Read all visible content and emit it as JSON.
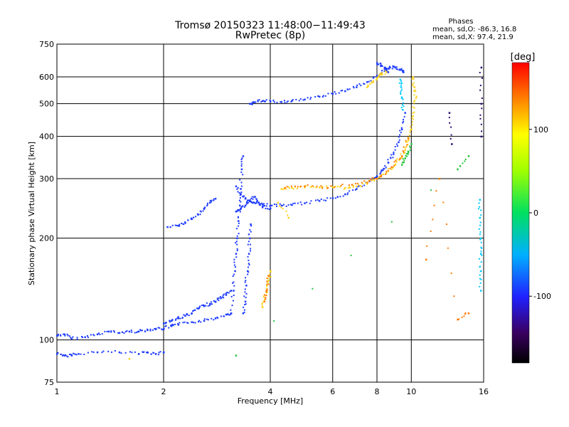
{
  "chart_data": {
    "type": "scatter",
    "title": "Tromsø 20150323 11:48:00−11:49:43",
    "subtitle": "RwPretec (8p)",
    "stats_header": "Phases",
    "stats_line_o": "mean, sd,O: -86.3, 16.8",
    "stats_line_x": "mean, sd,X:  97.4, 21.9",
    "xlabel": "Frequency [MHz]",
    "ylabel": "Stationary phase Virtual Height [km]",
    "x_scale": "log",
    "y_scale": "log",
    "xlim": [
      1,
      16
    ],
    "ylim": [
      75,
      750
    ],
    "x_ticks": [
      1,
      2,
      4,
      6,
      8,
      10,
      16
    ],
    "x_tick_labels": [
      "1",
      "2",
      "4",
      "6",
      "8",
      "10",
      "16"
    ],
    "y_ticks": [
      75,
      100,
      200,
      300,
      400,
      500,
      600,
      750
    ],
    "y_tick_labels": [
      "75",
      "100",
      "200",
      "300",
      "400",
      "500",
      "600",
      "750"
    ],
    "grid": true,
    "colorbar": {
      "label": "[deg]",
      "min": -180,
      "max": 180,
      "ticks": [
        -100,
        0,
        100
      ],
      "tick_labels": [
        "-100",
        "0",
        "100"
      ],
      "colormap": "rainbow"
    },
    "series": [
      {
        "color": "#1e3cff",
        "phase": -95,
        "segments": [
          {
            "x": [
              1.0,
              1.05,
              1.1,
              1.2,
              1.3,
              1.4,
              1.5,
              1.6,
              1.7,
              1.8,
              1.9,
              2.0,
              2.1,
              2.2,
              2.4,
              2.6,
              2.8,
              3.0,
              3.1
            ],
            "y": [
              103,
              104,
              101,
              102,
              104,
              106,
              105,
              106,
              106,
              107,
              108,
              108,
              110,
              111,
              113,
              114,
              116,
              119,
              120
            ]
          },
          {
            "x": [
              1.0,
              1.05,
              1.1,
              1.15,
              1.3,
              1.5,
              1.7,
              1.8,
              1.9,
              2.0
            ],
            "y": [
              91,
              90,
              90,
              91,
              92,
              92,
              91,
              92,
              91,
              92
            ]
          },
          {
            "x": [
              2.0,
              2.1,
              2.2,
              2.3,
              2.4,
              2.5,
              2.6,
              2.7,
              2.8,
              2.9,
              3.0,
              3.1
            ],
            "y": [
              112,
              114,
              116,
              118,
              120,
              124,
              126,
              128,
              130,
              133,
              136,
              140
            ]
          },
          {
            "x": [
              2.05,
              2.2,
              2.3,
              2.4,
              2.5,
              2.6,
              2.7,
              2.8
            ],
            "y": [
              216,
              218,
              222,
              228,
              235,
              245,
              255,
              262
            ]
          },
          {
            "x": [
              3.1,
              3.15,
              3.18,
              3.2,
              3.22,
              3.25,
              3.28,
              3.3,
              3.32,
              3.35
            ],
            "y": [
              120,
              140,
              160,
              180,
              200,
              225,
              250,
              280,
              320,
              350
            ]
          },
          {
            "x": [
              3.2,
              3.3,
              3.4,
              3.5,
              3.6,
              3.8,
              4.0,
              4.3,
              4.6,
              5.0,
              5.5,
              6.0,
              6.5,
              7.0,
              7.5,
              8.0,
              8.3,
              8.6,
              8.9,
              9.2,
              9.4,
              9.6
            ],
            "y": [
              285,
              270,
              262,
              258,
              255,
              252,
              250,
              250,
              251,
              254,
              258,
              263,
              270,
              280,
              292,
              305,
              318,
              335,
              355,
              385,
              420,
              470
            ]
          },
          {
            "x": [
              3.2,
              3.3,
              3.4,
              3.5,
              3.6,
              3.7,
              3.8,
              4.0
            ],
            "y": [
              240,
              245,
              250,
              258,
              265,
              255,
              248,
              245
            ]
          },
          {
            "x": [
              3.35,
              3.4,
              3.42,
              3.45,
              3.48,
              3.5,
              3.52
            ],
            "y": [
              120,
              130,
              145,
              160,
              180,
              200,
              220
            ]
          },
          {
            "x": [
              3.5,
              3.6,
              3.8,
              4.0,
              4.3,
              4.6,
              5.0,
              5.5,
              6.0,
              6.5,
              7.0,
              7.5,
              8.0,
              8.4,
              8.7,
              9.0,
              9.3,
              9.5
            ],
            "y": [
              500,
              505,
              510,
              508,
              506,
              510,
              515,
              525,
              535,
              545,
              560,
              580,
              605,
              625,
              640,
              640,
              630,
              620
            ]
          },
          {
            "x": [
              8.0,
              8.2,
              8.4,
              8.5,
              8.6
            ],
            "y": [
              660,
              650,
              640,
              630,
              620
            ]
          }
        ]
      },
      {
        "color": "#ffd21e",
        "phase": 100,
        "segments": [
          {
            "x": [
              4.3,
              4.6,
              5.0,
              5.5,
              6.0,
              6.5,
              7.0,
              7.5,
              8.0,
              8.5,
              9.0,
              9.3,
              9.6,
              9.8,
              10.0,
              10.1,
              10.2
            ],
            "y": [
              280,
              282,
              283,
              283,
              283,
              282,
              285,
              290,
              300,
              312,
              330,
              345,
              365,
              390,
              420,
              460,
              510
            ]
          },
          {
            "x": [
              3.8,
              3.85,
              3.9,
              3.95,
              4.0
            ],
            "y": [
              125,
              132,
              140,
              150,
              160
            ]
          },
          {
            "x": [
              7.5,
              7.8,
              8.0,
              8.2,
              8.5
            ],
            "y": [
              560,
              580,
              595,
              610,
              620
            ]
          },
          {
            "x": [
              10.1,
              10.2,
              10.3
            ],
            "y": [
              600,
              560,
              520
            ]
          },
          {
            "x": [
              1.6
            ],
            "y": [
              88
            ]
          },
          {
            "x": [
              4.2,
              4.5
            ],
            "y": [
              255,
              230
            ]
          }
        ]
      },
      {
        "color": "#ff7a00",
        "phase": 135,
        "segments": [
          {
            "x": [
              4.4,
              5.0,
              5.8,
              6.8,
              7.6,
              8.2,
              8.8,
              9.4,
              9.8
            ],
            "y": [
              282,
              285,
              282,
              288,
              296,
              305,
              325,
              350,
              395
            ]
          },
          {
            "x": [
              3.85,
              3.9,
              3.95
            ],
            "y": [
              130,
              140,
              155
            ]
          },
          {
            "x": [
              11.0,
              12.0,
              13.5,
              14.5
            ],
            "y": [
              173,
              300,
              115,
              120
            ]
          }
        ]
      },
      {
        "color": "#27c43a",
        "phase": 30,
        "segments": [
          {
            "x": [
              9.4,
              9.6,
              9.8,
              10.0
            ],
            "y": [
              330,
              345,
              360,
              380
            ]
          },
          {
            "x": [
              13.5,
              14.5,
              3.2
            ],
            "y": [
              320,
              350,
              90
            ]
          }
        ]
      },
      {
        "color": "#00c8ff",
        "phase": -40,
        "segments": [
          {
            "x": [
              15.6,
              15.6,
              15.7,
              15.7,
              15.7,
              15.7
            ],
            "y": [
              260,
              230,
              200,
              180,
              160,
              140
            ]
          },
          {
            "x": [
              9.3,
              9.35,
              9.4,
              9.45
            ],
            "y": [
              590,
              560,
              520,
              480
            ]
          }
        ]
      },
      {
        "color": "#2a0a6e",
        "phase": -150,
        "segments": [
          {
            "x": [
              15.75,
              15.75,
              15.75
            ],
            "y": [
              640,
              500,
              400
            ]
          },
          {
            "x": [
              12.8,
              13.0
            ],
            "y": [
              470,
              380
            ]
          }
        ]
      }
    ]
  }
}
